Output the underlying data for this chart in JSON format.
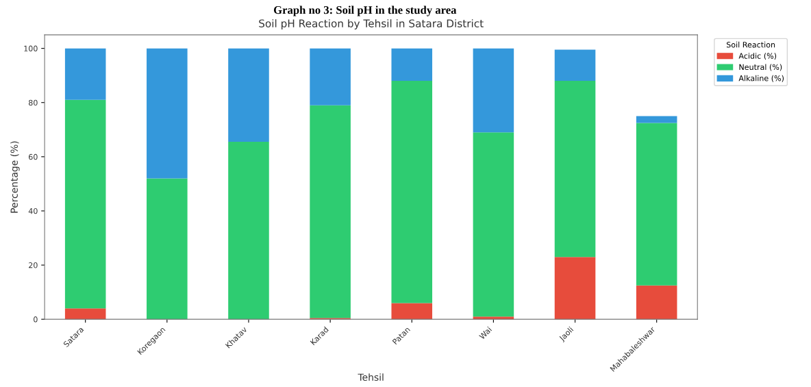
{
  "chart_data": {
    "type": "bar",
    "title": "Graph no 3: Soil pH in the study area",
    "subtitle": "Soil pH Reaction by Tehsil in Satara District",
    "xlabel": "Tehsil",
    "ylabel": "Percentage (%)",
    "legend_title": "Soil Reaction",
    "categories": [
      "Satara",
      "Koregaon",
      "Khatav",
      "Karad",
      "Patan",
      "Wai",
      "Jaoli",
      "Mahabaleshwar"
    ],
    "series": [
      {
        "name": "Acidic (%)",
        "color": "#e74c3c",
        "values": [
          4,
          0,
          0,
          0.5,
          6,
          1,
          23,
          12.5
        ]
      },
      {
        "name": "Neutral (%)",
        "color": "#2ecc71",
        "values": [
          77,
          52,
          65.5,
          78.5,
          82,
          68,
          65,
          60
        ]
      },
      {
        "name": "Alkaline (%)",
        "color": "#3498db",
        "values": [
          19,
          48,
          34.5,
          21,
          12,
          31,
          11.5,
          2.5
        ]
      }
    ],
    "stacked": true,
    "ylim": [
      0,
      105
    ],
    "yticks": [
      0,
      20,
      40,
      60,
      80,
      100
    ],
    "legend": "top right",
    "grid": false
  }
}
